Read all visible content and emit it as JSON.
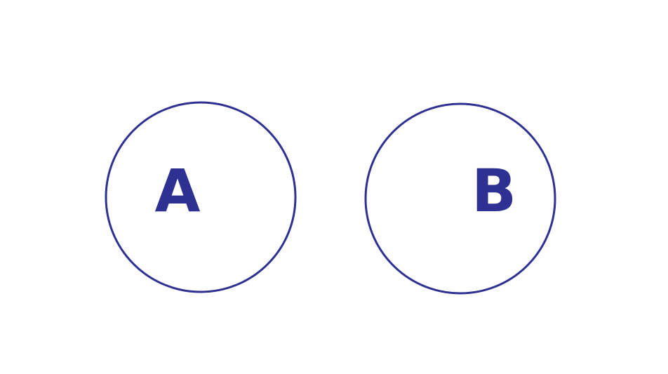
{
  "diagram": {
    "colors": {
      "stroke": "#2e3192",
      "label": "#2e3192",
      "background": "#ffffff"
    },
    "circles": [
      {
        "label": "A"
      },
      {
        "label": "B"
      }
    ]
  }
}
